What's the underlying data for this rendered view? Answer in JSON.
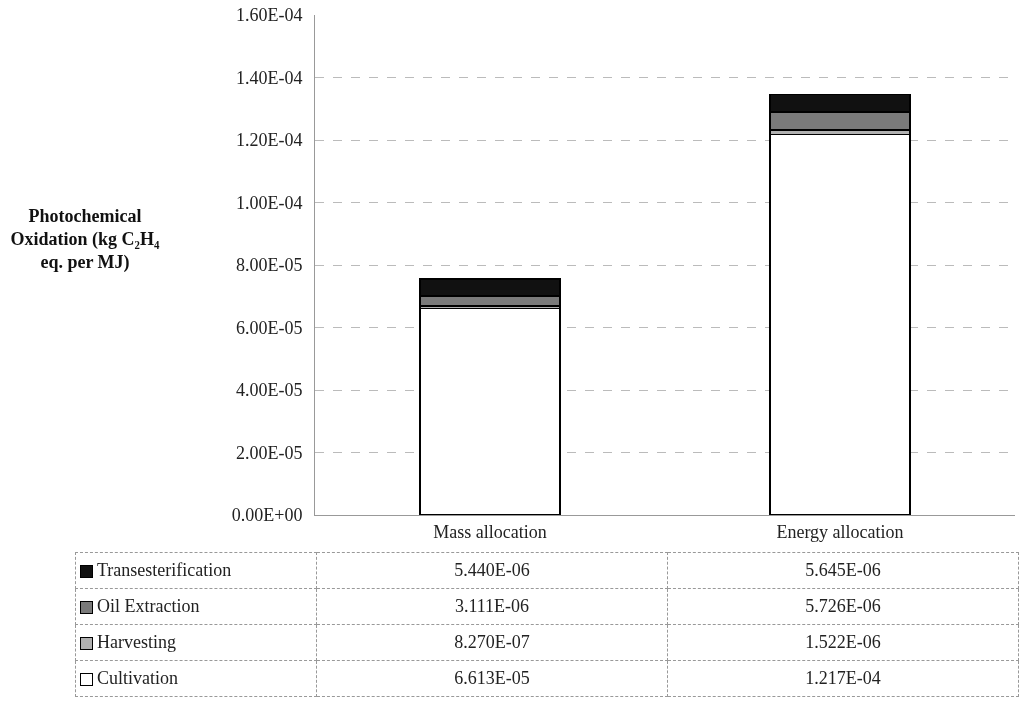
{
  "chart_data": {
    "type": "bar",
    "stacked": true,
    "ylabel": "Photochemical Oxidation (kg C₂H₄ eq. per MJ)",
    "categories": [
      "Mass allocation",
      "Energy allocation"
    ],
    "series": [
      {
        "name": "Cultivation",
        "color": "#ffffff",
        "values": [
          6.613e-05,
          0.0001217
        ],
        "value_labels": [
          "6.613E-05",
          "1.217E-04"
        ]
      },
      {
        "name": "Harvesting",
        "color": "#b0b0b0",
        "values": [
          8.27e-07,
          1.522e-06
        ],
        "value_labels": [
          "8.270E-07",
          "1.522E-06"
        ]
      },
      {
        "name": "Oil Extraction",
        "color": "#7a7a7a",
        "values": [
          3.111e-06,
          5.726e-06
        ],
        "value_labels": [
          "3.111E-06",
          "5.726E-06"
        ]
      },
      {
        "name": "Transesterification",
        "color": "#111111",
        "values": [
          5.44e-06,
          5.645e-06
        ],
        "value_labels": [
          "5.440E-06",
          "5.645E-06"
        ]
      }
    ],
    "ylim": [
      0,
      0.00016
    ],
    "yticks": [
      {
        "value": 0,
        "label": "0.00E+00"
      },
      {
        "value": 2e-05,
        "label": "2.00E-05"
      },
      {
        "value": 4e-05,
        "label": "4.00E-05"
      },
      {
        "value": 6e-05,
        "label": "6.00E-05"
      },
      {
        "value": 8e-05,
        "label": "8.00E-05"
      },
      {
        "value": 0.0001,
        "label": "1.00E-04"
      },
      {
        "value": 0.00012,
        "label": "1.20E-04"
      },
      {
        "value": 0.00014,
        "label": "1.40E-04"
      },
      {
        "value": 0.00016,
        "label": "1.60E-04"
      }
    ],
    "grid": "y",
    "legend": "bottom"
  }
}
